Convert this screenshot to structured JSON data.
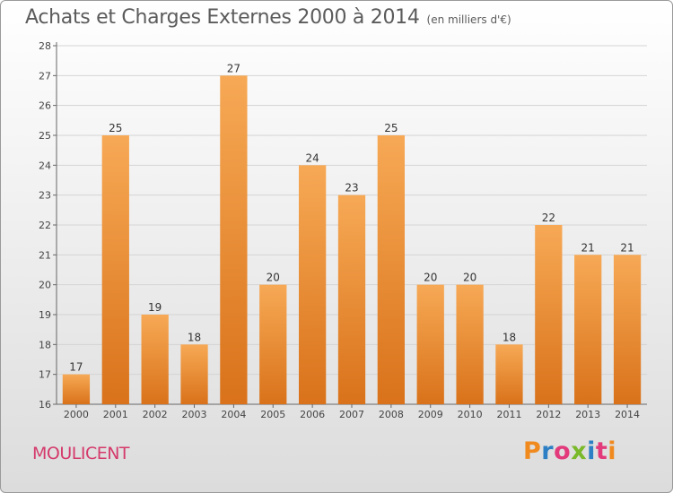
{
  "header": {
    "title": "Achats et Charges Externes 2000 à 2014",
    "subtitle": "(en milliers d'€)"
  },
  "footer": {
    "commune": "MOULICENT",
    "logo_letters": [
      "P",
      "r",
      "o",
      "x",
      "i",
      "t",
      "i"
    ],
    "logo_colors": [
      "#f08a1e",
      "#2c7fc4",
      "#e23a7b",
      "#7ab929",
      "#2c7fc4",
      "#e23a7b",
      "#f08a1e"
    ]
  },
  "chart_data": {
    "type": "bar",
    "categories": [
      "2000",
      "2001",
      "2002",
      "2003",
      "2004",
      "2005",
      "2006",
      "2007",
      "2008",
      "2009",
      "2010",
      "2011",
      "2012",
      "2013",
      "2014"
    ],
    "values": [
      17,
      25,
      19,
      18,
      27,
      20,
      24,
      23,
      25,
      20,
      20,
      18,
      22,
      21,
      21
    ],
    "title": "Achats et Charges Externes 2000 à 2014",
    "subtitle": "(en milliers d'€)",
    "ylim": [
      16,
      28
    ],
    "yticks": [
      16,
      17,
      18,
      19,
      20,
      21,
      22,
      23,
      24,
      25,
      26,
      27,
      28
    ],
    "grid": true,
    "bar_color_light": "#f7a955",
    "bar_color_dark": "#d9721a"
  }
}
